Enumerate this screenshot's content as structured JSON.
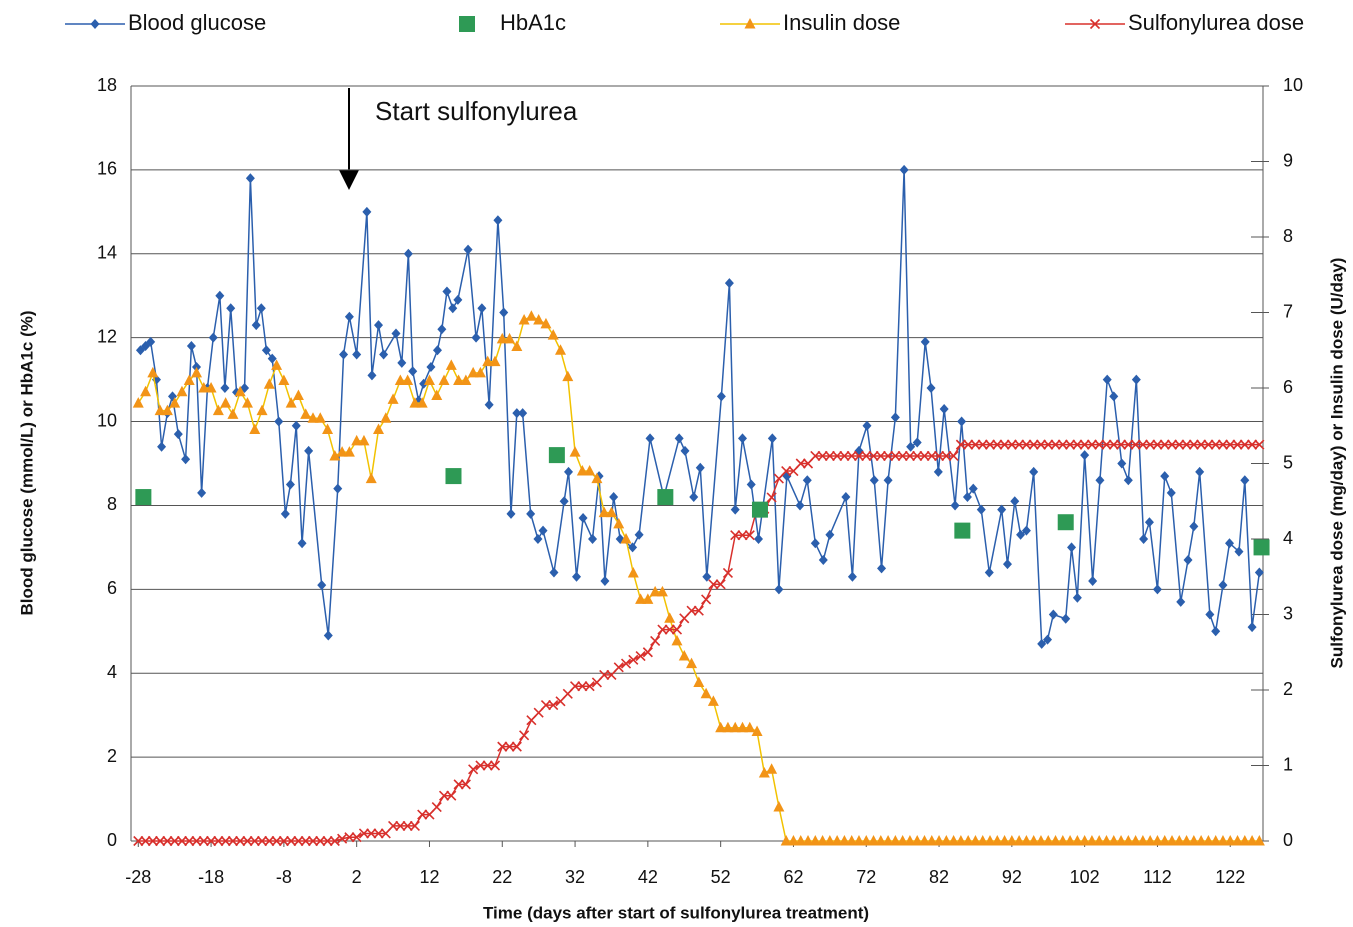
{
  "chart_data": {
    "type": "line",
    "xlabel": "Time (days after start of sulfonylurea treatment)",
    "ylabel": "Blood glucose (mmol/L) or HbA1c (%)",
    "y2label": "Sulfonylurea dose (mg/day) or Insulin dose (U/day)",
    "annotation": "Start sulfonylurea",
    "legend": "top",
    "grid": true,
    "xlim": [
      -29,
      126.5
    ],
    "xticks": [
      -28,
      -18,
      -8,
      2,
      12,
      22,
      32,
      42,
      52,
      62,
      72,
      82,
      92,
      102,
      112,
      122
    ],
    "ylim": [
      0,
      18
    ],
    "yticks": [
      0,
      2,
      4,
      6,
      8,
      10,
      12,
      14,
      16,
      18
    ],
    "y2lim": [
      0,
      10
    ],
    "y2ticks": [
      0,
      1,
      2,
      3,
      4,
      5,
      6,
      7,
      8,
      9,
      10
    ],
    "x": [
      -28,
      -27,
      -26,
      -25,
      -24,
      -23,
      -22,
      -21,
      -20,
      -19,
      -18,
      -17,
      -16,
      -15,
      -14,
      -13,
      -12,
      -11,
      -10,
      -9,
      -8,
      -7,
      -6,
      -5,
      -4,
      -3,
      -2,
      -1,
      0,
      1,
      2,
      3,
      4,
      5,
      6,
      7,
      8,
      9,
      10,
      11,
      12,
      13,
      14,
      15,
      16,
      17,
      18,
      19,
      20,
      21,
      22,
      23,
      24,
      25,
      26,
      27,
      28,
      29,
      30,
      31,
      32,
      33,
      34,
      35,
      36,
      37,
      38,
      39,
      40,
      41,
      42,
      43,
      44,
      45,
      46,
      47,
      48,
      49,
      50,
      51,
      52,
      53,
      54,
      55,
      56,
      57,
      58,
      59,
      60,
      61,
      62,
      63,
      64,
      65,
      66,
      67,
      68,
      69,
      70,
      71,
      72,
      73,
      74,
      75,
      76,
      77,
      78,
      79,
      80,
      81,
      82,
      83,
      84,
      85,
      86,
      87,
      88,
      89,
      90,
      91,
      92,
      93,
      94,
      95,
      96,
      97,
      98,
      99,
      100,
      101,
      102,
      103,
      104,
      105,
      106,
      107,
      108,
      109,
      110,
      111,
      112,
      113,
      114,
      115,
      116,
      117,
      118,
      119,
      120,
      121,
      122,
      123,
      124,
      125,
      126
    ],
    "series": [
      {
        "name": "Blood glucose",
        "color": "#2b5fad",
        "marker": "diamond",
        "marker_color": "#2b5fad",
        "line": true,
        "x": [
          -27.7,
          -27.0,
          -26.3,
          -25.5,
          -24.8,
          -24.0,
          -23.3,
          -22.5,
          -21.5,
          -20.7,
          -20.0,
          -19.3,
          -18.5,
          -17.7,
          -16.8,
          -16.1,
          -15.3,
          -14.5,
          -13.4,
          -12.6,
          -11.8,
          -11.1,
          -10.4,
          -9.6,
          -8.7,
          -7.8,
          -7.1,
          -6.3,
          -5.5,
          -4.6,
          -2.8,
          -1.9,
          -0.6,
          0.2,
          1.0,
          2.0,
          3.4,
          4.1,
          5.0,
          5.7,
          7.4,
          8.2,
          9.1,
          9.7,
          10.5,
          11.2,
          12.2,
          13.1,
          13.7,
          14.4,
          15.2,
          15.9,
          17.3,
          18.4,
          19.2,
          20.2,
          21.4,
          22.2,
          23.2,
          24.0,
          24.8,
          25.9,
          26.9,
          27.6,
          29.1,
          30.5,
          31.1,
          32.2,
          33.1,
          34.4,
          35.3,
          36.1,
          37.3,
          38.2,
          39.9,
          40.8,
          42.3,
          44.2,
          46.3,
          47.1,
          48.3,
          49.2,
          50.1,
          52.1,
          53.2,
          54.0,
          55.0,
          56.2,
          57.2,
          59.1,
          60.0,
          61.1,
          62.9,
          63.9,
          65.0,
          66.1,
          67.0,
          69.2,
          70.1,
          71.0,
          72.1,
          73.1,
          74.1,
          75.0,
          76.0,
          77.2,
          78.1,
          79.0,
          80.1,
          80.9,
          81.9,
          82.7,
          84.2,
          85.1,
          85.9,
          86.7,
          87.8,
          88.9,
          90.6,
          91.4,
          92.4,
          93.2,
          94.0,
          95.0,
          96.1,
          96.9,
          97.7,
          99.4,
          100.2,
          101.0,
          102.0,
          103.1,
          104.1,
          105.1,
          106.0,
          107.1,
          108.0,
          109.1,
          110.1,
          110.9,
          112.0,
          113.0,
          113.9,
          115.2,
          116.2,
          117.0,
          117.8,
          119.2,
          120.0,
          121.0,
          121.9,
          123.2,
          124.0,
          125.0,
          126.0
        ],
        "values": [
          11.7,
          11.8,
          11.9,
          11.0,
          9.4,
          10.2,
          10.6,
          9.7,
          9.1,
          11.8,
          11.3,
          8.3,
          10.8,
          12.0,
          13.0,
          10.8,
          12.7,
          10.7,
          10.8,
          15.8,
          12.3,
          12.7,
          11.7,
          11.5,
          10.0,
          7.8,
          8.5,
          9.9,
          7.1,
          9.3,
          6.1,
          4.9,
          8.4,
          11.6,
          12.5,
          11.6,
          15.0,
          11.1,
          12.3,
          11.6,
          12.1,
          11.4,
          14.0,
          11.2,
          10.5,
          10.9,
          11.3,
          11.7,
          12.2,
          13.1,
          12.7,
          12.9,
          14.1,
          12.0,
          12.7,
          10.4,
          14.8,
          12.6,
          7.8,
          10.2,
          10.2,
          7.8,
          7.2,
          7.4,
          6.4,
          8.1,
          8.8,
          6.3,
          7.7,
          7.2,
          8.7,
          6.2,
          8.2,
          7.2,
          7.0,
          7.3,
          9.6,
          8.2,
          9.6,
          9.3,
          8.2,
          8.9,
          6.3,
          10.6,
          13.3,
          7.9,
          9.6,
          8.5,
          7.2,
          9.6,
          6.0,
          8.7,
          8.0,
          8.6,
          7.1,
          6.7,
          7.3,
          8.2,
          6.3,
          9.3,
          9.9,
          8.6,
          6.5,
          8.6,
          10.1,
          16.0,
          9.4,
          9.5,
          11.9,
          10.8,
          8.8,
          10.3,
          8.0,
          10.0,
          8.2,
          8.4,
          7.9,
          6.4,
          7.9,
          6.6,
          8.1,
          7.3,
          7.4,
          8.8,
          4.7,
          4.8,
          5.4,
          5.3,
          7.0,
          5.8,
          9.2,
          6.2,
          8.6,
          11.0,
          10.6,
          9.0,
          8.6,
          11.0,
          7.2,
          7.6,
          6.0,
          8.7,
          8.3,
          5.7,
          6.7,
          7.5,
          8.8,
          5.4,
          5.0,
          6.1,
          7.1,
          6.9,
          8.6,
          5.1,
          6.4
        ]
      },
      {
        "name": "HbA1c",
        "color": "#2e9a55",
        "marker": "square",
        "marker_color": "#2e9a55",
        "line": false,
        "x": [
          -27.3,
          15.3,
          29.5,
          44.4,
          57.4,
          85.2,
          99.4,
          126.3
        ],
        "values": [
          8.2,
          8.7,
          9.2,
          8.2,
          7.9,
          7.4,
          7.6,
          7.0
        ]
      },
      {
        "name": "Insulin dose",
        "color": "#f2c200",
        "marker": "triangle",
        "marker_color": "#f29417",
        "line": true,
        "axis": "y2",
        "values": [
          5.8,
          5.95,
          6.2,
          5.7,
          5.7,
          5.8,
          5.95,
          6.1,
          6.2,
          6.0,
          6.0,
          5.7,
          5.8,
          5.65,
          5.95,
          5.8,
          5.45,
          5.7,
          6.05,
          6.3,
          6.1,
          5.8,
          5.9,
          5.65,
          5.6,
          5.6,
          5.45,
          5.1,
          5.15,
          5.15,
          5.3,
          5.3,
          4.8,
          5.45,
          5.6,
          5.85,
          6.1,
          6.1,
          5.8,
          5.8,
          6.1,
          5.9,
          6.1,
          6.3,
          6.1,
          6.1,
          6.2,
          6.2,
          6.35,
          6.35,
          6.65,
          6.65,
          6.55,
          6.9,
          6.95,
          6.9,
          6.85,
          6.7,
          6.5,
          6.15,
          5.15,
          4.9,
          4.9,
          4.8,
          4.35,
          4.35,
          4.2,
          4.0,
          3.55,
          3.2,
          3.2,
          3.3,
          3.3,
          2.95,
          2.65,
          2.45,
          2.35,
          2.1,
          1.95,
          1.85,
          1.5,
          1.5,
          1.5,
          1.5,
          1.5,
          1.45,
          0.9,
          0.95,
          0.45,
          0,
          0,
          0,
          0,
          0,
          0,
          0,
          0,
          0,
          0,
          0,
          0,
          0,
          0,
          0,
          0,
          0,
          0,
          0,
          0,
          0,
          0,
          0,
          0,
          0,
          0,
          0,
          0,
          0,
          0,
          0,
          0,
          0,
          0,
          0,
          0,
          0,
          0,
          0,
          0,
          0,
          0,
          0,
          0,
          0,
          0,
          0,
          0,
          0,
          0,
          0,
          0,
          0,
          0,
          0,
          0,
          0,
          0,
          0,
          0,
          0,
          0,
          0,
          0,
          0,
          0
        ]
      },
      {
        "name": "Sulfonylurea dose",
        "color": "#d8302c",
        "marker": "x",
        "marker_color": "#d8302c",
        "line": true,
        "axis": "y2",
        "values": [
          0,
          0,
          0,
          0,
          0,
          0,
          0,
          0,
          0,
          0,
          0,
          0,
          0,
          0,
          0,
          0,
          0,
          0,
          0,
          0,
          0,
          0,
          0,
          0,
          0,
          0,
          0,
          0,
          0.03,
          0.05,
          0.05,
          0.1,
          0.1,
          0.1,
          0.1,
          0.2,
          0.2,
          0.2,
          0.2,
          0.35,
          0.35,
          0.45,
          0.6,
          0.6,
          0.75,
          0.75,
          0.95,
          1.0,
          1.0,
          1.0,
          1.25,
          1.25,
          1.25,
          1.4,
          1.6,
          1.7,
          1.8,
          1.8,
          1.85,
          1.95,
          2.05,
          2.05,
          2.05,
          2.1,
          2.2,
          2.2,
          2.3,
          2.35,
          2.4,
          2.45,
          2.5,
          2.65,
          2.8,
          2.8,
          2.8,
          2.95,
          3.05,
          3.05,
          3.2,
          3.4,
          3.4,
          3.55,
          4.05,
          4.05,
          4.05,
          4.4,
          4.4,
          4.55,
          4.8,
          4.9,
          4.9,
          5.0,
          5.0,
          5.1,
          5.1,
          5.1,
          5.1,
          5.1,
          5.1,
          5.1,
          5.1,
          5.1,
          5.1,
          5.1,
          5.1,
          5.1,
          5.1,
          5.1,
          5.1,
          5.1,
          5.1,
          5.1,
          5.1,
          5.25,
          5.25,
          5.25,
          5.25,
          5.25,
          5.25,
          5.25,
          5.25,
          5.25,
          5.25,
          5.25,
          5.25,
          5.25,
          5.25,
          5.25,
          5.25,
          5.25,
          5.25,
          5.25,
          5.25,
          5.25,
          5.25,
          5.25,
          5.25,
          5.25,
          5.25,
          5.25,
          5.25,
          5.25,
          5.25,
          5.25,
          5.25,
          5.25,
          5.25,
          5.25,
          5.25,
          5.25,
          5.25,
          5.25,
          5.25,
          5.25,
          5.25
        ]
      }
    ]
  }
}
